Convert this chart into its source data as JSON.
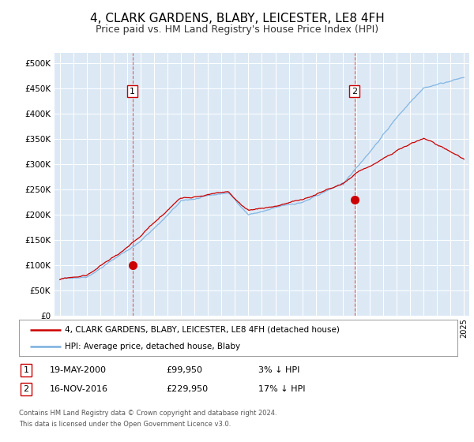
{
  "title": "4, CLARK GARDENS, BLABY, LEICESTER, LE8 4FH",
  "subtitle": "Price paid vs. HM Land Registry's House Price Index (HPI)",
  "title_fontsize": 11,
  "subtitle_fontsize": 9,
  "background_color": "#ffffff",
  "plot_bg_color": "#dce9f5",
  "grid_color": "#ffffff",
  "hpi_color": "#7ab0e0",
  "price_color": "#cc0000",
  "sale1_date": 2000.38,
  "sale1_price": 99950,
  "sale2_date": 2016.88,
  "sale2_price": 229950,
  "yticks": [
    0,
    50000,
    100000,
    150000,
    200000,
    250000,
    300000,
    350000,
    400000,
    450000,
    500000
  ],
  "ytick_labels": [
    "£0",
    "£50K",
    "£100K",
    "£150K",
    "£200K",
    "£250K",
    "£300K",
    "£350K",
    "£400K",
    "£450K",
    "£500K"
  ],
  "xmin": 1994.6,
  "xmax": 2025.4,
  "ymin": 0,
  "ymax": 520000,
  "legend_entry1": "4, CLARK GARDENS, BLABY, LEICESTER, LE8 4FH (detached house)",
  "legend_entry2": "HPI: Average price, detached house, Blaby",
  "annotation1_label": "1",
  "annotation1_date": "19-MAY-2000",
  "annotation1_price": "£99,950",
  "annotation1_pct": "3% ↓ HPI",
  "annotation2_label": "2",
  "annotation2_date": "16-NOV-2016",
  "annotation2_price": "£229,950",
  "annotation2_pct": "17% ↓ HPI",
  "footer1": "Contains HM Land Registry data © Crown copyright and database right 2024.",
  "footer2": "This data is licensed under the Open Government Licence v3.0."
}
